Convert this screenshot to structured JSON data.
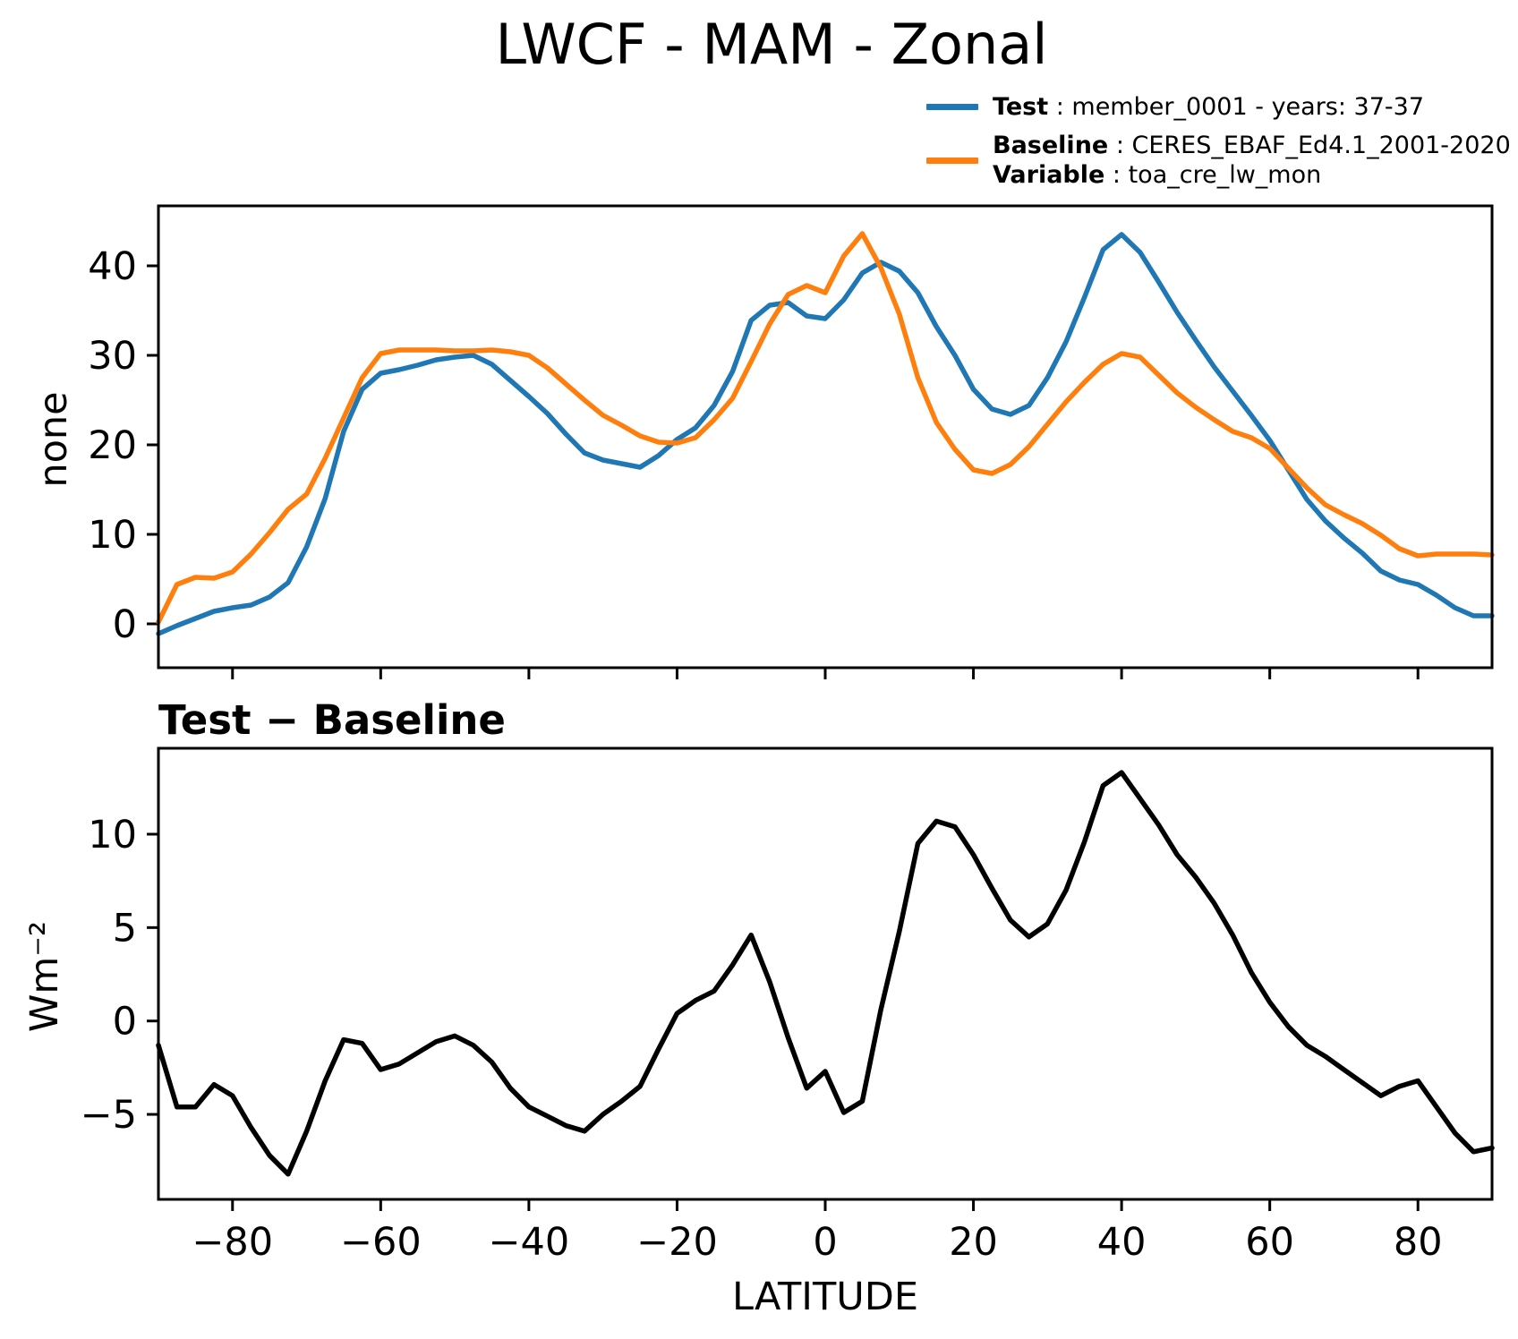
{
  "title": "LWCF - MAM - Zonal",
  "legend": {
    "position": "upper-right-above-axes",
    "entries": [
      {
        "series": "test",
        "bold": "Test",
        "rest": " : member_0001 - years: 37-37"
      },
      {
        "series": "baseline",
        "bold": "Baseline",
        "rest": " : CERES_EBAF_Ed4.1_2001-2020"
      },
      {
        "series": "baseline",
        "bold": "Variable",
        "rest": " : toa_cre_lw_mon"
      }
    ]
  },
  "chart_data": {
    "type": "line",
    "x": [
      -90,
      -87.5,
      -85,
      -82.5,
      -80,
      -77.5,
      -75,
      -72.5,
      -70,
      -67.5,
      -65,
      -62.5,
      -60,
      -57.5,
      -55,
      -52.5,
      -50,
      -47.5,
      -45,
      -42.5,
      -40,
      -37.5,
      -35,
      -32.5,
      -30,
      -27.5,
      -25,
      -22.5,
      -20,
      -17.5,
      -15,
      -12.5,
      -10,
      -7.5,
      -5,
      -2.5,
      0,
      2.5,
      5,
      7.5,
      10,
      12.5,
      15,
      17.5,
      20,
      22.5,
      25,
      27.5,
      30,
      32.5,
      35,
      37.5,
      40,
      42.5,
      45,
      47.5,
      50,
      52.5,
      55,
      57.5,
      60,
      62.5,
      65,
      67.5,
      70,
      72.5,
      75,
      77.5,
      80,
      82.5,
      85,
      87.5,
      90
    ],
    "xlim": [
      -90,
      90
    ],
    "xlabel": "LATITUDE",
    "grid": false,
    "panels": [
      {
        "id": "main",
        "ylabel": "none",
        "ylim": [
          -4.9,
          46.7
        ],
        "yticks": [
          0,
          10,
          20,
          30,
          40
        ],
        "xticks": [
          -80,
          -60,
          -40,
          -20,
          0,
          20,
          40,
          60,
          80
        ],
        "show_xlabels": false,
        "series": [
          {
            "id": "test",
            "name": "Test",
            "color": "#1f77b4",
            "values": [
              -1.1,
              -0.2,
              0.6,
              1.4,
              1.8,
              2.1,
              3.0,
              4.6,
              8.6,
              14.0,
              21.5,
              26.2,
              28.0,
              28.4,
              28.9,
              29.5,
              29.8,
              30.0,
              29.0,
              27.2,
              25.4,
              23.5,
              21.2,
              19.1,
              18.3,
              17.9,
              17.5,
              18.8,
              20.6,
              21.9,
              24.4,
              28.2,
              33.9,
              35.6,
              35.9,
              34.4,
              34.1,
              36.2,
              39.2,
              40.4,
              39.4,
              37.0,
              33.2,
              30.0,
              26.2,
              24.0,
              23.4,
              24.4,
              27.5,
              31.5,
              36.5,
              41.8,
              43.5,
              41.5,
              38.2,
              34.8,
              31.7,
              28.7,
              26.0,
              23.3,
              20.5,
              17.2,
              13.9,
              11.5,
              9.6,
              7.9,
              5.9,
              4.9,
              4.4,
              3.2,
              1.8,
              0.9,
              0.9
            ]
          },
          {
            "id": "baseline",
            "name": "Baseline",
            "color": "#ff7f0e",
            "values": [
              0.2,
              4.4,
              5.2,
              5.1,
              5.8,
              7.8,
              10.2,
              12.8,
              14.5,
              18.5,
              23.0,
              27.5,
              30.2,
              30.6,
              30.6,
              30.6,
              30.5,
              30.5,
              30.6,
              30.4,
              30.0,
              28.6,
              26.8,
              25.0,
              23.3,
              22.2,
              21.0,
              20.3,
              20.2,
              20.8,
              22.8,
              25.2,
              29.3,
              33.5,
              36.8,
              37.8,
              37.0,
              41.1,
              43.6,
              39.8,
              34.6,
              27.5,
              22.5,
              19.5,
              17.2,
              16.8,
              17.8,
              19.8,
              22.3,
              24.8,
              27.0,
              29.0,
              30.2,
              29.8,
              27.8,
              25.8,
              24.2,
              22.8,
              21.5,
              20.8,
              19.6,
              17.4,
              15.2,
              13.3,
              12.2,
              11.2,
              9.9,
              8.4,
              7.6,
              7.8,
              7.8,
              7.8,
              7.7
            ]
          }
        ]
      },
      {
        "id": "diff",
        "title": "Test − Baseline",
        "ylabel": "Wm⁻²",
        "xlabel": "LATITUDE",
        "ylim": [
          -9.55,
          14.6
        ],
        "yticks": [
          -5,
          0,
          5,
          10
        ],
        "xticks": [
          -80,
          -60,
          -40,
          -20,
          0,
          20,
          40,
          60,
          80
        ],
        "show_xlabels": true,
        "series": [
          {
            "id": "difference",
            "name": "Test − Baseline",
            "color": "#000000",
            "values": [
              -1.3,
              -4.6,
              -4.6,
              -3.4,
              -4.0,
              -5.7,
              -7.2,
              -8.2,
              -5.9,
              -3.2,
              -1.0,
              -1.2,
              -2.6,
              -2.3,
              -1.7,
              -1.1,
              -0.8,
              -1.3,
              -2.2,
              -3.6,
              -4.6,
              -5.1,
              -5.6,
              -5.9,
              -5.0,
              -4.3,
              -3.5,
              -1.5,
              0.4,
              1.1,
              1.6,
              3.0,
              4.6,
              2.1,
              -0.9,
              -3.6,
              -2.7,
              -4.9,
              -4.3,
              0.6,
              4.8,
              9.5,
              10.7,
              10.4,
              8.9,
              7.1,
              5.4,
              4.5,
              5.2,
              7.0,
              9.6,
              12.6,
              13.3,
              11.9,
              10.5,
              8.9,
              7.7,
              6.3,
              4.6,
              2.6,
              1.0,
              -0.3,
              -1.3,
              -1.9,
              -2.6,
              -3.3,
              -4.0,
              -3.5,
              -3.2,
              -4.6,
              -6.0,
              -7.0,
              -6.8
            ]
          }
        ]
      }
    ]
  }
}
